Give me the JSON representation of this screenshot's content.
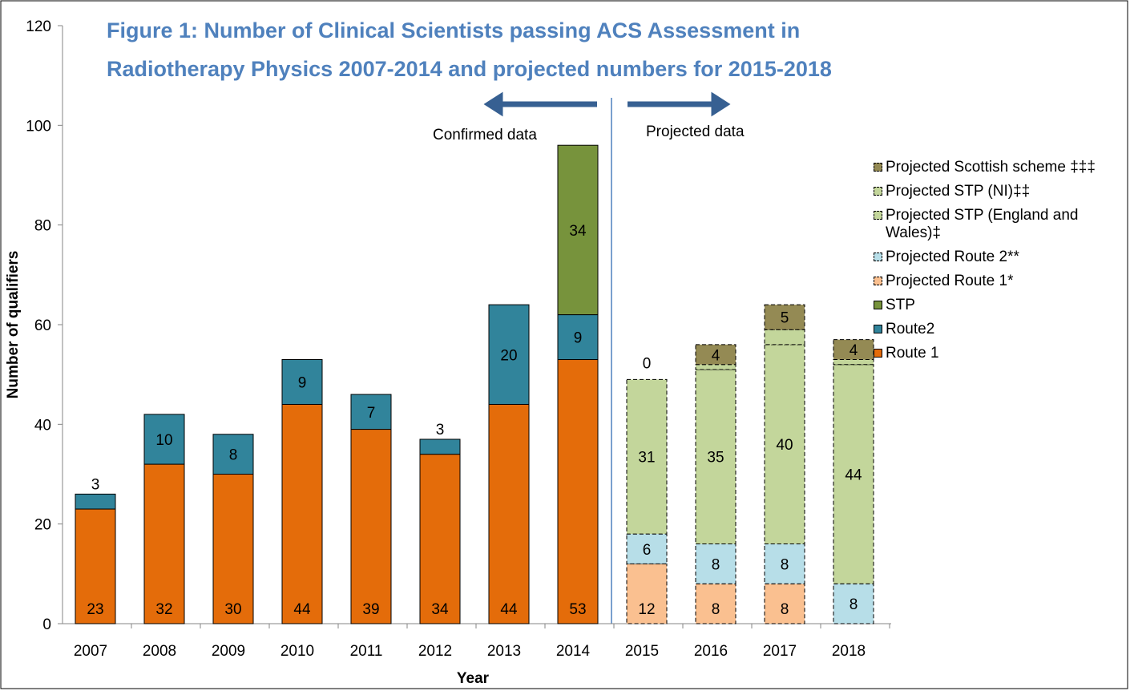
{
  "chart_data": {
    "type": "stacked_bar",
    "title": [
      "Figure 1: Number of Clinical Scientists passing ACS Assessment in",
      "Radiotherapy Physics 2007-2014 and projected numbers for 2015-2018"
    ],
    "x_label": "Year",
    "y_label": "Number of qualifiers",
    "annotations": [
      "Confirmed data",
      "Projected data"
    ],
    "categories": [
      "2007",
      "2008",
      "2009",
      "2010",
      "2011",
      "2012",
      "2013",
      "2014",
      "2015",
      "2016",
      "2017",
      "2018"
    ],
    "ylim": [
      0,
      120
    ],
    "yticks": [
      0,
      20,
      40,
      60,
      80,
      100,
      120
    ],
    "series": [
      {
        "name": "Route 1",
        "color": "#e46c0a",
        "dashed": false,
        "values": [
          23,
          32,
          30,
          44,
          39,
          34,
          44,
          53,
          null,
          null,
          null,
          null
        ]
      },
      {
        "name": "Route2",
        "color": "#31849b",
        "dashed": false,
        "values": [
          3,
          10,
          8,
          9,
          7,
          3,
          20,
          9,
          null,
          null,
          null,
          null
        ]
      },
      {
        "name": "STP",
        "color": "#77933c",
        "dashed": false,
        "values": [
          null,
          null,
          null,
          null,
          null,
          null,
          null,
          34,
          null,
          null,
          null,
          null
        ]
      },
      {
        "name": "Projected Route 1*",
        "color": "#fac090",
        "dashed": true,
        "values": [
          null,
          null,
          null,
          null,
          null,
          null,
          null,
          null,
          12,
          8,
          8,
          null
        ]
      },
      {
        "name": "Projected Route 2**",
        "color": "#b7dee8",
        "dashed": true,
        "values": [
          null,
          null,
          null,
          null,
          null,
          null,
          null,
          null,
          6,
          8,
          8,
          8
        ]
      },
      {
        "name": "Projected STP (England and Wales)‡",
        "color": "#c3d69b",
        "dashed": true,
        "values": [
          null,
          null,
          null,
          null,
          null,
          null,
          null,
          null,
          31,
          35,
          40,
          44
        ]
      },
      {
        "name": "Projected STP (NI)‡‡",
        "color": "#c3d69b",
        "dashed": true,
        "values": [
          null,
          null,
          null,
          null,
          null,
          null,
          null,
          null,
          null,
          1,
          3,
          1
        ]
      },
      {
        "name": "Projected Scottish scheme ‡‡‡",
        "color": "#948a54",
        "dashed": true,
        "values": [
          null,
          null,
          null,
          null,
          null,
          null,
          null,
          null,
          0,
          4,
          5,
          4
        ]
      }
    ]
  }
}
